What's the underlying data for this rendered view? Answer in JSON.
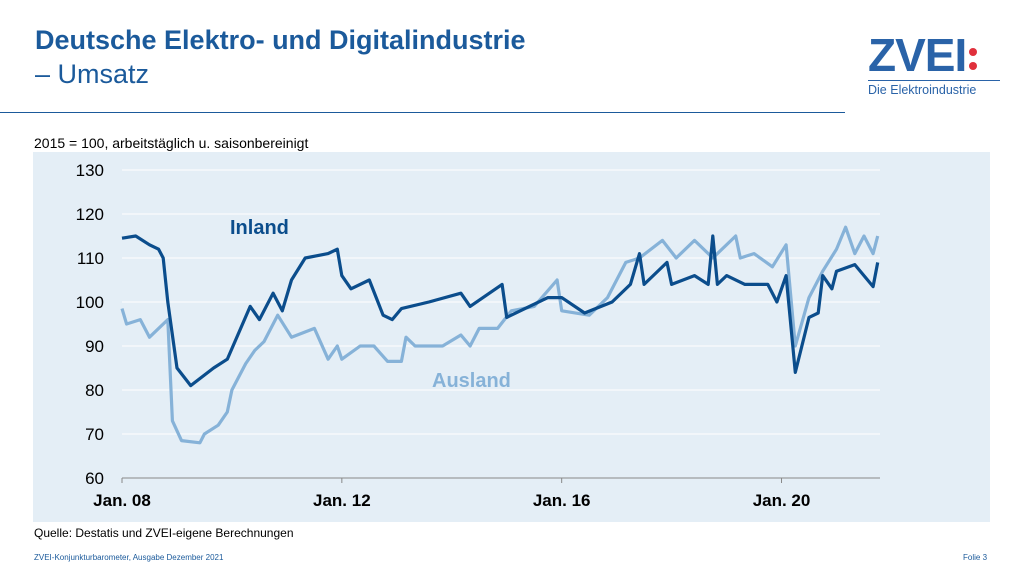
{
  "header": {
    "title_line1": "Deutsche Elektro- und Digitalindustrie",
    "title_line2": "– Umsatz"
  },
  "logo": {
    "text": "ZVEI",
    "tagline": "Die Elektroindustrie"
  },
  "subtitle": "2015 = 100, arbeitstäglich u. saisonbereinigt",
  "source": "Quelle: Destatis und ZVEI-eigene Berechnungen",
  "footer": {
    "left": "ZVEI-Konjunkturbarometer, Ausgabe Dezember 2021",
    "right": "Folie 3"
  },
  "chart_data": {
    "type": "line",
    "title": "",
    "xlabel": "",
    "ylabel": "",
    "ylim": [
      60,
      130
    ],
    "yticks": [
      60,
      70,
      80,
      90,
      100,
      110,
      120,
      130
    ],
    "xticks": [
      {
        "date": "2008-01",
        "label": "Jan. 08"
      },
      {
        "date": "2012-01",
        "label": "Jan. 12"
      },
      {
        "date": "2016-01",
        "label": "Jan. 16"
      },
      {
        "date": "2020-01",
        "label": "Jan. 20"
      }
    ],
    "grid": "horizontal",
    "series": [
      {
        "name": "Inland",
        "color": "#0b4d8c",
        "points": [
          [
            "2008-01",
            114.5
          ],
          [
            "2008-04",
            115
          ],
          [
            "2008-07",
            113
          ],
          [
            "2008-09",
            112
          ],
          [
            "2008-10",
            110
          ],
          [
            "2008-11",
            100
          ],
          [
            "2009-01",
            85
          ],
          [
            "2009-04",
            81
          ],
          [
            "2009-09",
            85
          ],
          [
            "2009-12",
            87
          ],
          [
            "2010-05",
            99
          ],
          [
            "2010-07",
            96
          ],
          [
            "2010-10",
            102
          ],
          [
            "2010-12",
            98
          ],
          [
            "2011-02",
            105
          ],
          [
            "2011-05",
            110
          ],
          [
            "2011-10",
            111
          ],
          [
            "2011-12",
            112
          ],
          [
            "2012-01",
            106
          ],
          [
            "2012-03",
            103
          ],
          [
            "2012-07",
            105
          ],
          [
            "2012-10",
            97
          ],
          [
            "2012-12",
            96
          ],
          [
            "2013-02",
            98.5
          ],
          [
            "2013-08",
            100
          ],
          [
            "2014-03",
            102
          ],
          [
            "2014-05",
            99
          ],
          [
            "2014-12",
            104
          ],
          [
            "2015-01",
            96.5
          ],
          [
            "2015-05",
            98.5
          ],
          [
            "2015-10",
            101
          ],
          [
            "2016-01",
            101
          ],
          [
            "2016-06",
            97.5
          ],
          [
            "2016-12",
            100
          ],
          [
            "2017-04",
            104
          ],
          [
            "2017-06",
            111
          ],
          [
            "2017-07",
            104
          ],
          [
            "2017-12",
            109
          ],
          [
            "2018-01",
            104
          ],
          [
            "2018-06",
            106
          ],
          [
            "2018-09",
            104
          ],
          [
            "2018-10",
            115
          ],
          [
            "2018-11",
            104
          ],
          [
            "2019-01",
            106
          ],
          [
            "2019-05",
            104
          ],
          [
            "2019-10",
            104
          ],
          [
            "2019-12",
            100
          ],
          [
            "2020-02",
            106
          ],
          [
            "2020-04",
            84
          ],
          [
            "2020-07",
            96.5
          ],
          [
            "2020-09",
            97.5
          ],
          [
            "2020-10",
            106
          ],
          [
            "2020-12",
            103
          ],
          [
            "2021-01",
            107
          ],
          [
            "2021-05",
            108.5
          ],
          [
            "2021-09",
            103.5
          ],
          [
            "2021-10",
            109
          ]
        ]
      },
      {
        "name": "Ausland",
        "color": "#86b2d8",
        "points": [
          [
            "2008-01",
            98.5
          ],
          [
            "2008-02",
            95
          ],
          [
            "2008-05",
            96
          ],
          [
            "2008-07",
            92
          ],
          [
            "2008-11",
            96
          ],
          [
            "2008-12",
            73
          ],
          [
            "2009-02",
            68.5
          ],
          [
            "2009-06",
            68
          ],
          [
            "2009-07",
            70
          ],
          [
            "2009-10",
            72
          ],
          [
            "2009-12",
            75
          ],
          [
            "2010-01",
            80
          ],
          [
            "2010-04",
            86
          ],
          [
            "2010-06",
            89
          ],
          [
            "2010-08",
            91
          ],
          [
            "2010-11",
            97
          ],
          [
            "2011-02",
            92
          ],
          [
            "2011-07",
            94
          ],
          [
            "2011-10",
            87
          ],
          [
            "2011-12",
            90
          ],
          [
            "2012-01",
            87
          ],
          [
            "2012-05",
            90
          ],
          [
            "2012-08",
            90
          ],
          [
            "2012-11",
            86.5
          ],
          [
            "2013-02",
            86.5
          ],
          [
            "2013-03",
            92
          ],
          [
            "2013-05",
            90
          ],
          [
            "2013-11",
            90
          ],
          [
            "2014-03",
            92.5
          ],
          [
            "2014-05",
            90
          ],
          [
            "2014-07",
            94
          ],
          [
            "2014-11",
            94
          ],
          [
            "2015-02",
            98
          ],
          [
            "2015-07",
            99
          ],
          [
            "2015-12",
            105
          ],
          [
            "2016-01",
            98
          ],
          [
            "2016-07",
            97
          ],
          [
            "2016-11",
            101
          ],
          [
            "2017-03",
            109
          ],
          [
            "2017-06",
            110
          ],
          [
            "2017-11",
            114
          ],
          [
            "2018-02",
            110
          ],
          [
            "2018-06",
            114
          ],
          [
            "2018-10",
            110
          ],
          [
            "2019-03",
            115
          ],
          [
            "2019-04",
            110
          ],
          [
            "2019-07",
            111
          ],
          [
            "2019-11",
            108
          ],
          [
            "2020-02",
            113
          ],
          [
            "2020-04",
            90
          ],
          [
            "2020-07",
            101
          ],
          [
            "2020-10",
            107
          ],
          [
            "2021-01",
            112
          ],
          [
            "2021-03",
            117
          ],
          [
            "2021-05",
            111
          ],
          [
            "2021-07",
            115
          ],
          [
            "2021-09",
            111
          ],
          [
            "2021-10",
            115
          ]
        ]
      }
    ]
  }
}
